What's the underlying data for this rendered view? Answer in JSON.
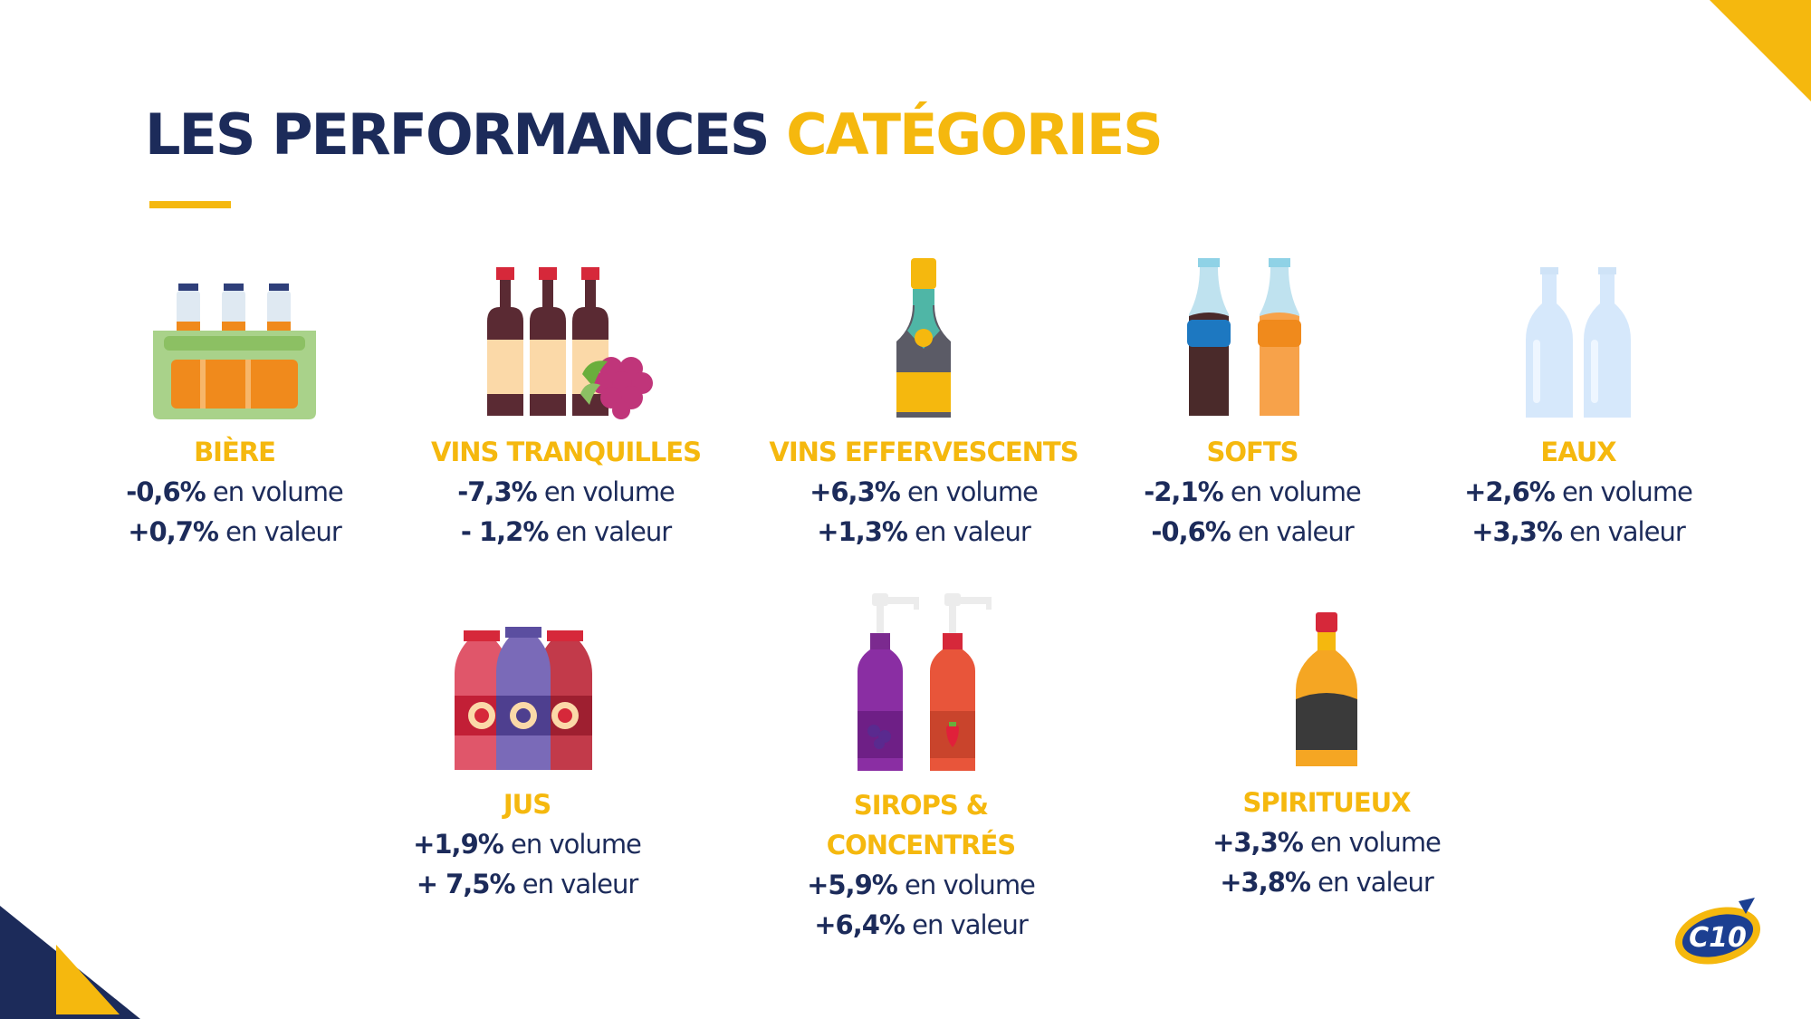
{
  "title": {
    "main": "LES PERFORMANCES",
    "accent": "CATÉGORIES"
  },
  "colors": {
    "navy": "#1c2b5a",
    "yellow": "#f5b80e"
  },
  "categories": [
    {
      "name": "BIÈRE",
      "icon": "beer-crate-icon",
      "volume_value": "-0,6%",
      "volume_label": " en volume",
      "value_value": "+0,7%",
      "value_label": " en valeur"
    },
    {
      "name": "VINS TRANQUILLES",
      "icon": "wine-bottles-grapes-icon",
      "volume_value": "-7,3%",
      "volume_label": " en volume",
      "value_value": "- 1,2%",
      "value_label": " en valeur"
    },
    {
      "name": "VINS EFFERVESCENTS",
      "icon": "champagne-bottle-icon",
      "volume_value": "+6,3%",
      "volume_label": " en volume",
      "value_value": "+1,3%",
      "value_label": " en valeur"
    },
    {
      "name": "SOFTS",
      "icon": "soda-bottles-icon",
      "volume_value": "-2,1%",
      "volume_label": " en volume",
      "value_value": "-0,6%",
      "value_label": " en valeur"
    },
    {
      "name": "EAUX",
      "icon": "water-bottles-icon",
      "volume_value": "+2,6%",
      "volume_label": " en volume",
      "value_value": "+3,3%",
      "value_label": " en valeur"
    },
    {
      "name": "JUS",
      "icon": "juice-bottles-icon",
      "volume_value": "+1,9%",
      "volume_label": " en volume",
      "value_value": "+ 7,5%",
      "value_label": " en valeur"
    },
    {
      "name": "SIROPS & CONCENTRÉS",
      "icon": "syrup-pump-bottles-icon",
      "volume_value": "+5,9%",
      "volume_label": " en volume",
      "value_value": "+6,4%",
      "value_label": " en valeur"
    },
    {
      "name": "SPIRITUEUX",
      "icon": "spirits-bottle-icon",
      "volume_value": "+3,3%",
      "volume_label": " en volume",
      "value_value": "+3,8%",
      "value_label": " en valeur"
    }
  ],
  "logo": {
    "text": "C10"
  }
}
